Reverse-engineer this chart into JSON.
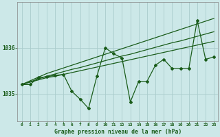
{
  "title": "Graphe pression niveau de la mer (hPa)",
  "bg_color": "#cce8e8",
  "grid_color": "#aacccc",
  "line_color": "#1a5c1a",
  "xlim": [
    -0.5,
    23.5
  ],
  "ylim": [
    1034.4,
    1037.0
  ],
  "yticks": [
    1035,
    1036
  ],
  "xticks": [
    0,
    1,
    2,
    3,
    4,
    5,
    6,
    7,
    8,
    9,
    10,
    11,
    12,
    13,
    14,
    15,
    16,
    17,
    18,
    19,
    20,
    21,
    22,
    23
  ],
  "wiggly": [
    1035.2,
    1035.2,
    1035.35,
    1035.37,
    1035.4,
    1035.42,
    1035.05,
    1034.88,
    1034.68,
    1035.38,
    1036.0,
    1035.87,
    1035.78,
    1034.82,
    1035.27,
    1035.27,
    1035.62,
    1035.75,
    1035.55,
    1035.55,
    1035.55,
    1036.6,
    1035.75,
    1035.8
  ],
  "linear_low": [
    1035.2,
    1035.25,
    1035.3,
    1035.35,
    1035.38,
    1035.42,
    1035.46,
    1035.5,
    1035.54,
    1035.58,
    1035.62,
    1035.66,
    1035.7,
    1035.74,
    1035.78,
    1035.82,
    1035.86,
    1035.9,
    1035.94,
    1035.98,
    1036.02,
    1036.06,
    1036.1,
    1036.14
  ],
  "linear_mid": [
    1035.2,
    1035.26,
    1035.32,
    1035.38,
    1035.43,
    1035.48,
    1035.53,
    1035.57,
    1035.62,
    1035.67,
    1035.72,
    1035.77,
    1035.82,
    1035.86,
    1035.91,
    1035.96,
    1036.01,
    1036.06,
    1036.11,
    1036.15,
    1036.2,
    1036.25,
    1036.3,
    1036.35
  ],
  "linear_high": [
    1035.2,
    1035.28,
    1035.36,
    1035.44,
    1035.5,
    1035.56,
    1035.62,
    1035.68,
    1035.74,
    1035.8,
    1035.86,
    1035.92,
    1035.98,
    1036.04,
    1036.1,
    1036.16,
    1036.22,
    1036.28,
    1036.34,
    1036.4,
    1036.46,
    1036.52,
    1036.58,
    1036.64
  ]
}
